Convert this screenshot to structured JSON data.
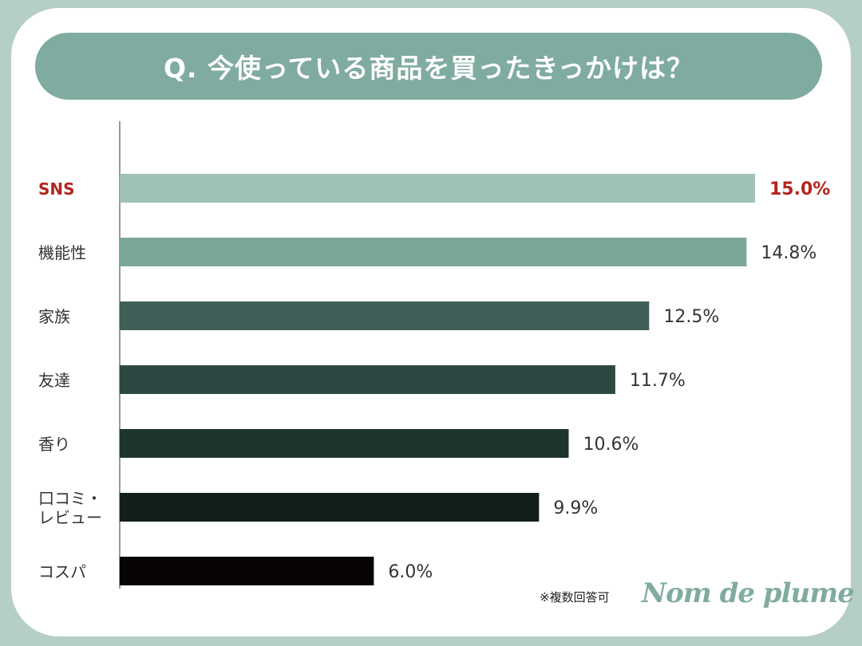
{
  "chart_data": {
    "type": "bar",
    "orientation": "horizontal",
    "title": "Q. 今使っている商品を買ったきっかけは？",
    "categories": [
      "SNS",
      "機能性",
      "家族",
      "友達",
      "香り",
      "口コミ・レビュー",
      "コスパ"
    ],
    "category_lines": [
      [
        "SNS"
      ],
      [
        "機能性"
      ],
      [
        "家族"
      ],
      [
        "友達"
      ],
      [
        "香り"
      ],
      [
        "口コミ・",
        "レビュー"
      ],
      [
        "コスパ"
      ]
    ],
    "values": [
      15.0,
      14.8,
      12.5,
      11.7,
      10.6,
      9.9,
      6.0
    ],
    "value_labels": [
      "15.0%",
      "14.8%",
      "12.5%",
      "11.7%",
      "10.6%",
      "9.9%",
      "6.0%"
    ],
    "bar_colors": [
      "#9fc1b7",
      "#7ba79b",
      "#3f5f58",
      "#2d4843",
      "#1e352f",
      "#121f1a",
      "#080404"
    ],
    "highlight_color": "#b3251e",
    "highlight_index": 0,
    "unit": "%",
    "xlim": [
      0,
      15
    ],
    "grid": false,
    "legend": "none",
    "xlabel": "",
    "ylabel": ""
  },
  "footer": {
    "note": "※複数回答可",
    "brand": "Nom de plume"
  }
}
